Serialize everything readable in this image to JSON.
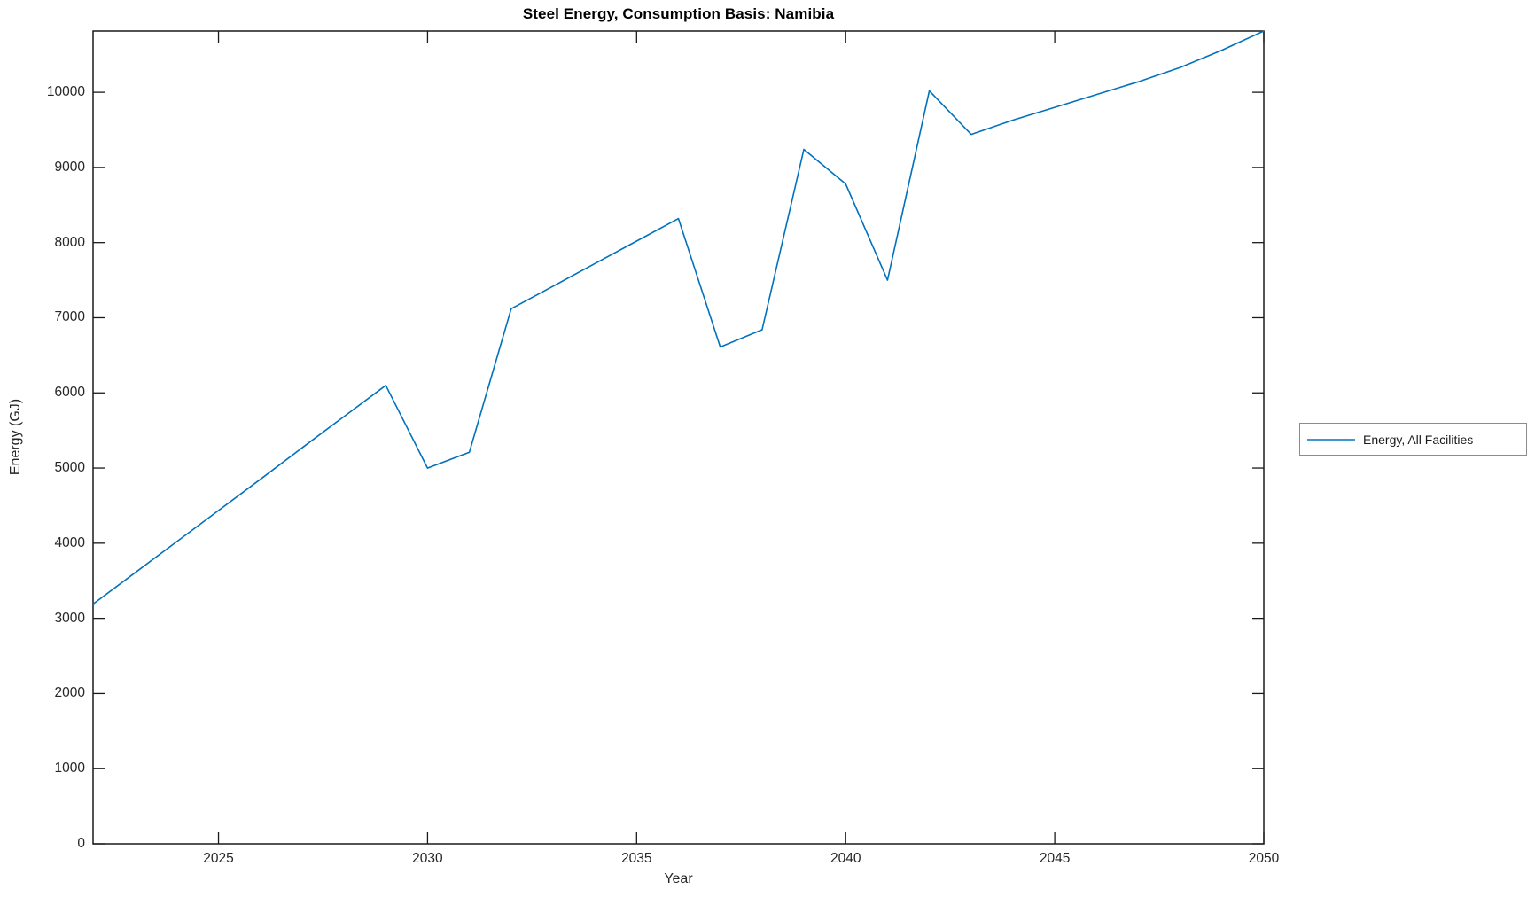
{
  "chart_data": {
    "type": "line",
    "title": "Steel Energy, Consumption Basis: Namibia",
    "xlabel": "Year",
    "ylabel": "Energy (GJ)",
    "xlim": [
      2022,
      2050
    ],
    "ylim": [
      0,
      10815
    ],
    "x_ticks": [
      2025,
      2030,
      2035,
      2040,
      2045,
      2050
    ],
    "y_ticks": [
      0,
      1000,
      2000,
      3000,
      4000,
      5000,
      6000,
      7000,
      8000,
      9000,
      10000
    ],
    "grid": false,
    "box": true,
    "tick_direction": "in",
    "legend_position": "right-outside",
    "axis_color": "#1a1a1a",
    "tick_label_color": "#262626",
    "x": [
      2022,
      2023,
      2024,
      2025,
      2026,
      2027,
      2028,
      2029,
      2030,
      2031,
      2032,
      2033,
      2034,
      2035,
      2036,
      2037,
      2038,
      2039,
      2040,
      2041,
      2042,
      2043,
      2044,
      2045,
      2046,
      2047,
      2048,
      2049,
      2050
    ],
    "series": [
      {
        "name": "Energy, All Facilities",
        "color": "#0072BD",
        "values": [
          3190,
          3605,
          4020,
          4435,
          4850,
          5270,
          5685,
          6100,
          5000,
          5210,
          7120,
          7420,
          7720,
          8020,
          8320,
          6610,
          6840,
          9240,
          8780,
          7500,
          10020,
          9440,
          9630,
          9800,
          9970,
          10140,
          10330,
          10560,
          10815
        ]
      }
    ]
  }
}
